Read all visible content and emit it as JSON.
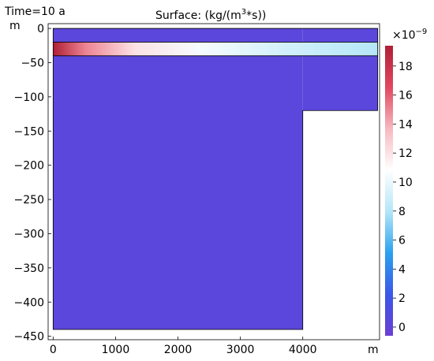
{
  "header": {
    "time_label": "Time=10 a",
    "title_prefix": "Surface:  (kg/(m",
    "title_sup": "3",
    "title_suffix": "*s))"
  },
  "colorbar": {
    "multiplier_base": "×10",
    "multiplier_exp": "−9",
    "tick_values": [
      18,
      16,
      14,
      12,
      10,
      8,
      6,
      4,
      2,
      0
    ],
    "range": [
      -0.6,
      19.4
    ],
    "colors": [
      "#6a3fd6",
      "#3b57e8",
      "#2aa2f0",
      "#b4e6f8",
      "#ffffff",
      "#f6b8c0",
      "#e2475e",
      "#b01f35"
    ]
  },
  "axes": {
    "y_unit": "m",
    "x_unit": "m",
    "y_ticks": [
      0,
      -50,
      -100,
      -150,
      -200,
      -250,
      -300,
      -350,
      -400,
      -450
    ],
    "x_ticks": [
      0,
      1000,
      2000,
      3000,
      4000
    ],
    "xlim": [
      -80,
      5230
    ],
    "ylim": [
      -455,
      7
    ]
  },
  "chart_data": {
    "type": "heatmap",
    "title": "Surface:  (kg/(m3*s))",
    "time": "Time=10 a",
    "xlabel": "m",
    "ylabel": "m",
    "xlim": [
      -80,
      5230
    ],
    "ylim": [
      -455,
      7
    ],
    "x_ticks": [
      0,
      1000,
      2000,
      3000,
      4000
    ],
    "y_ticks": [
      0,
      -50,
      -100,
      -150,
      -200,
      -250,
      -300,
      -350,
      -400,
      -450
    ],
    "colorbar_range": [
      -0.6,
      19.4
    ],
    "colorbar_ticks": [
      0,
      2,
      4,
      6,
      8,
      10,
      12,
      14,
      16,
      18
    ],
    "colorbar_scale": "×10^-9",
    "domain_regions": [
      {
        "x": [
          0,
          4000
        ],
        "y": [
          -440,
          0
        ]
      },
      {
        "x": [
          4000,
          5200
        ],
        "y": [
          -120,
          0
        ]
      }
    ],
    "layer_lines_y": [
      -20,
      -40
    ],
    "background_value": 0.3,
    "high_value_layer": {
      "x": [
        0,
        5200
      ],
      "y": [
        -40,
        -20
      ],
      "max_value": 19.4,
      "max_at_x": 0
    }
  }
}
